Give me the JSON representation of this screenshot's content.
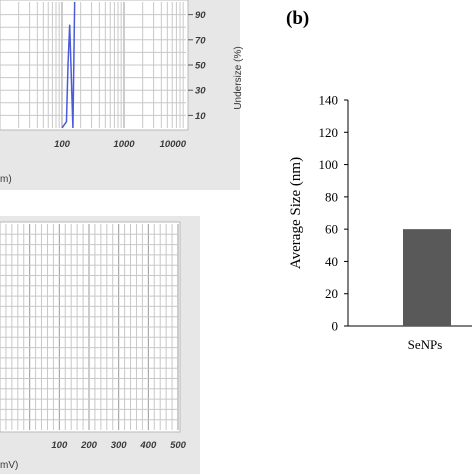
{
  "panel_b_label": "(b)",
  "chart_data": [
    {
      "id": "size-distribution",
      "type": "line",
      "xscale": "log",
      "xlim": [
        10,
        10000
      ],
      "ylim": [
        0,
        100
      ],
      "x_ticks": [
        "100",
        "1000",
        "10000"
      ],
      "y_ticks": [
        "90",
        "70",
        "50",
        "30",
        "10"
      ],
      "ylabel": "Undersize (%)",
      "xlabel_fragment": "m)",
      "grid": true,
      "series": [
        {
          "color": "#4a5bd8",
          "x": [
            100,
            118,
            125,
            133,
            150,
            160
          ],
          "y": [
            0,
            5,
            50,
            82,
            0,
            100
          ]
        }
      ]
    },
    {
      "id": "zeta-potential",
      "type": "line",
      "xlim": [
        -100,
        500
      ],
      "x_ticks": [
        "100",
        "200",
        "300",
        "400",
        "500"
      ],
      "xlabel_fragment": "mV)",
      "grid": true,
      "series": []
    },
    {
      "id": "average-size",
      "type": "bar",
      "categories": [
        "SeNPs"
      ],
      "values": [
        60
      ],
      "ylabel": "Average  Size (nm)",
      "ylim": [
        0,
        140
      ],
      "y_ticks": [
        "0",
        "20",
        "40",
        "60",
        "80",
        "100",
        "120",
        "140"
      ],
      "bar_color": "#595959",
      "grid": false
    }
  ]
}
